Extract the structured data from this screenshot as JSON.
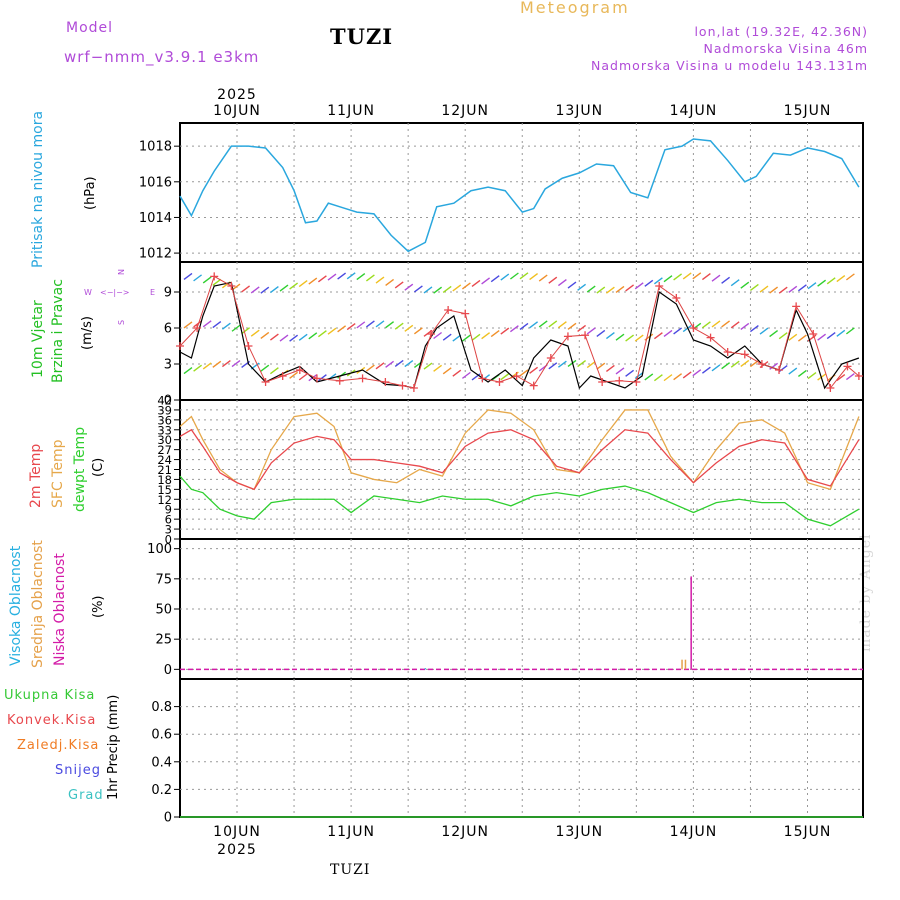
{
  "header": {
    "model_label": "Model",
    "model_name": "wrf−nmm_v3.9.1  e3km",
    "station": "TUZI",
    "product": "Meteogram",
    "coords": "lon,lat (19.32E, 42.36N)",
    "altitude": "Nadmorska Visina 46m",
    "model_altitude": "Nadmorska Visina u modelu 143.131m",
    "footer_station": "TUZI",
    "credit": "made by Angel"
  },
  "colors": {
    "pressure": "#2aa7de",
    "temp2m": "#e8484d",
    "sfc": "#e6a84b",
    "dewpt": "#2fcf2f",
    "high": "#27b0e0",
    "mid": "#e5a14a",
    "low": "#d31aa7",
    "precip": "#35c935",
    "conv": "#e8484d",
    "frozen": "#f07c24",
    "snow": "#4a4ae0",
    "graupel": "#3bc2c2",
    "wind_label": "#23c023",
    "cloud_label_high": "#27b0e0"
  },
  "axis": {
    "top_year": "2025",
    "bottom_year": "2025",
    "days": [
      "10JUN",
      "11JUN",
      "12JUN",
      "13JUN",
      "14JUN",
      "15JUN"
    ]
  },
  "panels": {
    "pressure": {
      "label": "Pritisak na nivou mora",
      "unit": "(hPa)"
    },
    "wind": {
      "label1": "10m Vjetar",
      "label2": "Brzina i Pravac",
      "unit": "(m/s)",
      "compass_n": "N",
      "compass_w": "W",
      "compass_e": "E",
      "compass_s": "S"
    },
    "temp": {
      "label1": "2m Temp",
      "label2": "SFC Temp",
      "label3": "dewpt Temp",
      "unit": "(C)"
    },
    "cloud": {
      "label1": "Visoka Oblacnost",
      "label2": "Srednja Oblacnost",
      "label3": "Niska Oblacnost",
      "unit": "(%)"
    },
    "precip": {
      "labels": [
        "Ukupna Kisa",
        "Konvek.Kisa",
        "Zaledj.Kisa",
        "Snijeg",
        "Grad"
      ],
      "unit": "1hr Precip (mm)"
    }
  },
  "chart_data": [
    {
      "type": "line",
      "title": "Pritisak na nivou mora",
      "ylabel": "(hPa)",
      "ylim": [
        1011.5,
        1019.3
      ],
      "yticks": [
        1012,
        1014,
        1016,
        1018
      ],
      "x_range_days": [
        0,
        6
      ],
      "x_days_start_offset": -0.5,
      "series": [
        {
          "name": "MSLP",
          "x": [
            0.0,
            0.1,
            0.2,
            0.3,
            0.45,
            0.6,
            0.75,
            0.9,
            1.0,
            1.1,
            1.2,
            1.3,
            1.45,
            1.55,
            1.7,
            1.85,
            2.0,
            2.15,
            2.25,
            2.4,
            2.55,
            2.7,
            2.85,
            3.0,
            3.1,
            3.2,
            3.35,
            3.5,
            3.65,
            3.8,
            3.95,
            4.1,
            4.25,
            4.4,
            4.5,
            4.65,
            4.8,
            4.95,
            5.05,
            5.2,
            5.35,
            5.5,
            5.65,
            5.8,
            5.95
          ],
          "values": [
            1015.2,
            1014.1,
            1015.5,
            1016.6,
            1018.0,
            1018.0,
            1017.9,
            1016.8,
            1015.5,
            1013.7,
            1013.8,
            1014.8,
            1014.5,
            1014.3,
            1014.2,
            1013.0,
            1012.1,
            1012.6,
            1014.6,
            1014.8,
            1015.5,
            1015.7,
            1015.5,
            1014.3,
            1014.5,
            1015.6,
            1016.2,
            1016.5,
            1017.0,
            1016.9,
            1015.4,
            1015.1,
            1017.8,
            1018.0,
            1018.4,
            1018.3,
            1017.2,
            1016.0,
            1016.3,
            1017.6,
            1017.5,
            1017.9,
            1017.7,
            1017.3,
            1015.7
          ]
        }
      ]
    },
    {
      "type": "line",
      "title": "10m Vjetar Brzina i Pravac",
      "ylabel": "(m/s)",
      "ylim": [
        0,
        11.5
      ],
      "yticks": [
        0,
        3,
        6,
        9
      ],
      "series": [
        {
          "name": "wind speed",
          "x": [
            0.0,
            0.1,
            0.2,
            0.3,
            0.45,
            0.6,
            0.75,
            0.9,
            1.05,
            1.2,
            1.4,
            1.6,
            1.8,
            1.95,
            2.05,
            2.15,
            2.25,
            2.4,
            2.55,
            2.7,
            2.85,
            3.0,
            3.1,
            3.25,
            3.4,
            3.5,
            3.6,
            3.75,
            3.9,
            4.05,
            4.2,
            4.35,
            4.5,
            4.65,
            4.8,
            4.95,
            5.1,
            5.25,
            5.4,
            5.5,
            5.65,
            5.8,
            5.95
          ],
          "values": [
            4.0,
            3.5,
            7.0,
            9.5,
            9.8,
            3.0,
            1.5,
            2.2,
            2.8,
            1.5,
            2.0,
            2.5,
            1.3,
            1.2,
            1.0,
            4.5,
            6.0,
            7.0,
            2.5,
            1.5,
            2.5,
            1.2,
            3.5,
            5.0,
            4.5,
            1.0,
            2.0,
            1.5,
            1.0,
            2.0,
            9.0,
            8.0,
            5.0,
            4.5,
            3.5,
            4.5,
            3.0,
            2.5,
            7.5,
            5.5,
            1.0,
            3.0,
            3.5
          ]
        },
        {
          "name": "wind gust",
          "x": [
            0.0,
            0.15,
            0.3,
            0.45,
            0.6,
            0.75,
            0.9,
            1.05,
            1.2,
            1.4,
            1.6,
            1.8,
            1.95,
            2.05,
            2.2,
            2.35,
            2.5,
            2.65,
            2.8,
            2.95,
            3.1,
            3.25,
            3.4,
            3.55,
            3.7,
            3.85,
            4.0,
            4.2,
            4.35,
            4.5,
            4.65,
            4.8,
            4.95,
            5.1,
            5.25,
            5.4,
            5.55,
            5.7,
            5.85,
            5.95
          ],
          "values": [
            4.5,
            6.0,
            10.3,
            9.5,
            4.5,
            1.5,
            2.0,
            2.5,
            1.8,
            1.6,
            1.8,
            1.5,
            1.2,
            1.0,
            5.5,
            7.5,
            7.2,
            1.8,
            1.5,
            2.0,
            1.2,
            3.5,
            5.3,
            5.4,
            1.5,
            1.6,
            1.5,
            9.5,
            8.5,
            6.0,
            5.2,
            4.0,
            3.8,
            3.0,
            2.5,
            7.8,
            5.5,
            1.0,
            2.8,
            2.0
          ]
        }
      ]
    },
    {
      "type": "line",
      "title": "2m / SFC / dewpt Temp",
      "ylabel": "(C)",
      "ylim": [
        0,
        42
      ],
      "yticks": [
        0,
        3,
        6,
        9,
        12,
        15,
        18,
        21,
        24,
        27,
        30,
        33,
        36,
        39,
        42
      ],
      "series": [
        {
          "name": "2m Temp",
          "x": [
            0.0,
            0.1,
            0.2,
            0.35,
            0.5,
            0.65,
            0.8,
            1.0,
            1.2,
            1.35,
            1.5,
            1.7,
            1.9,
            2.1,
            2.3,
            2.5,
            2.7,
            2.9,
            3.1,
            3.3,
            3.5,
            3.7,
            3.9,
            4.1,
            4.3,
            4.5,
            4.7,
            4.9,
            5.1,
            5.3,
            5.5,
            5.7,
            5.95
          ],
          "values": [
            31,
            33,
            28,
            20,
            17,
            15,
            23,
            29,
            31,
            30,
            24,
            24,
            23,
            22,
            20,
            28,
            32,
            33,
            30,
            22,
            20,
            27,
            33,
            32,
            24,
            17,
            23,
            28,
            30,
            29,
            18,
            16,
            30
          ]
        },
        {
          "name": "SFC Temp",
          "x": [
            0.0,
            0.1,
            0.2,
            0.35,
            0.5,
            0.65,
            0.8,
            1.0,
            1.2,
            1.35,
            1.5,
            1.7,
            1.9,
            2.1,
            2.3,
            2.5,
            2.7,
            2.9,
            3.1,
            3.3,
            3.5,
            3.7,
            3.9,
            4.1,
            4.3,
            4.5,
            4.7,
            4.9,
            5.1,
            5.3,
            5.5,
            5.7,
            5.95
          ],
          "values": [
            34,
            37,
            30,
            21,
            17,
            15,
            27,
            37,
            38,
            34,
            20,
            18,
            17,
            21,
            19,
            32,
            39,
            38,
            33,
            21,
            20,
            30,
            39,
            39,
            25,
            17,
            27,
            35,
            36,
            32,
            17,
            15,
            37
          ]
        },
        {
          "name": "dewpt Temp",
          "x": [
            0.0,
            0.1,
            0.2,
            0.35,
            0.5,
            0.65,
            0.8,
            1.0,
            1.2,
            1.35,
            1.5,
            1.7,
            1.9,
            2.1,
            2.3,
            2.5,
            2.7,
            2.9,
            3.1,
            3.3,
            3.5,
            3.7,
            3.9,
            4.1,
            4.3,
            4.5,
            4.7,
            4.9,
            5.1,
            5.3,
            5.5,
            5.7,
            5.95
          ],
          "values": [
            19,
            15,
            14,
            9,
            7,
            6,
            11,
            12,
            12,
            12,
            8,
            13,
            12,
            11,
            13,
            12,
            12,
            10,
            13,
            14,
            13,
            15,
            16,
            14,
            11,
            8,
            11,
            12,
            11,
            11,
            6,
            4,
            9
          ]
        }
      ]
    },
    {
      "type": "bar",
      "title": "Oblacnost",
      "ylabel": "(%)",
      "ylim": [
        -8,
        108
      ],
      "yticks": [
        0,
        25,
        50,
        75,
        100
      ],
      "series": [
        {
          "name": "Visoka Oblacnost",
          "x": [
            2.15
          ],
          "values": [
            1
          ]
        },
        {
          "name": "Srednja Oblacnost",
          "x": [
            4.4,
            4.43
          ],
          "values": [
            8,
            8
          ]
        },
        {
          "name": "Niska Oblacnost",
          "x": [
            4.48
          ],
          "values": [
            77
          ]
        }
      ]
    },
    {
      "type": "line",
      "title": "1hr Precip",
      "ylabel": "(mm)",
      "ylim": [
        0,
        1.0
      ],
      "yticks": [
        0,
        0.2,
        0.4,
        0.6,
        0.8
      ],
      "series": [
        {
          "name": "Ukupna Kisa",
          "x": [
            0,
            6
          ],
          "values": [
            0,
            0
          ]
        }
      ]
    }
  ]
}
